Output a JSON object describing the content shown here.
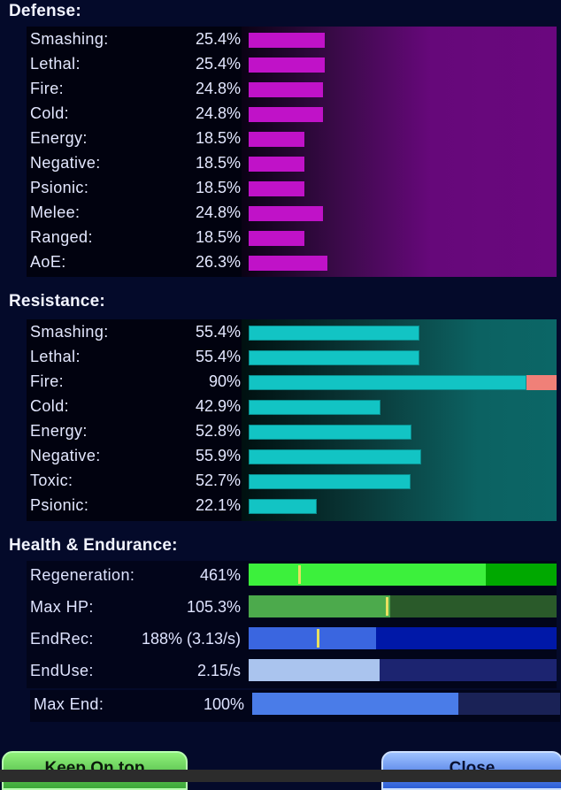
{
  "defense": {
    "title": "Defense:",
    "rows": [
      {
        "label": "Smashing:",
        "value": "25.4%",
        "fraction": 0.254
      },
      {
        "label": "Lethal:",
        "value": "25.4%",
        "fraction": 0.254
      },
      {
        "label": "Fire:",
        "value": "24.8%",
        "fraction": 0.248
      },
      {
        "label": "Cold:",
        "value": "24.8%",
        "fraction": 0.248
      },
      {
        "label": "Energy:",
        "value": "18.5%",
        "fraction": 0.185
      },
      {
        "label": "Negative:",
        "value": "18.5%",
        "fraction": 0.185
      },
      {
        "label": "Psionic:",
        "value": "18.5%",
        "fraction": 0.185
      },
      {
        "label": "Melee:",
        "value": "24.8%",
        "fraction": 0.248
      },
      {
        "label": "Ranged:",
        "value": "18.5%",
        "fraction": 0.185
      },
      {
        "label": "AoE:",
        "value": "26.3%",
        "fraction": 0.263
      }
    ]
  },
  "resistance": {
    "title": "Resistance:",
    "rows": [
      {
        "label": "Smashing:",
        "value": "55.4%",
        "fraction": 0.554
      },
      {
        "label": "Lethal:",
        "value": "55.4%",
        "fraction": 0.554
      },
      {
        "label": "Fire:",
        "value": "90%",
        "fraction": 0.9,
        "over_cap": true
      },
      {
        "label": "Cold:",
        "value": "42.9%",
        "fraction": 0.429
      },
      {
        "label": "Energy:",
        "value": "52.8%",
        "fraction": 0.528
      },
      {
        "label": "Negative:",
        "value": "55.9%",
        "fraction": 0.559
      },
      {
        "label": "Toxic:",
        "value": "52.7%",
        "fraction": 0.527
      },
      {
        "label": "Psionic:",
        "value": "22.1%",
        "fraction": 0.221
      }
    ]
  },
  "health_endurance": {
    "title": "Health & Endurance:",
    "rows": [
      {
        "label": "Regeneration:",
        "value": "461%",
        "fill_fraction": 0.77,
        "marker_fraction": 0.16,
        "track_color": "#00a800",
        "fill_color": "#3cf03c"
      },
      {
        "label": "Max HP:",
        "value": "105.3%",
        "fill_fraction": 0.46,
        "marker_fraction": 0.445,
        "track_color": "#2a5a2a",
        "fill_color": "#4caa4c"
      },
      {
        "label": "EndRec:",
        "value": "188% (3.13/s)",
        "fill_fraction": 0.415,
        "marker_fraction": 0.22,
        "track_color": "#0018a8",
        "fill_color": "#3a66e0"
      },
      {
        "label": "EndUse:",
        "value": "2.15/s",
        "fill_fraction": 0.425,
        "marker_fraction": null,
        "track_color": "#1c2470",
        "fill_color": "#aac4ee"
      },
      {
        "label": "Max End:",
        "value": "100%",
        "fill_fraction": 0.67,
        "marker_fraction": null,
        "track_color": "#1a2256",
        "fill_color": "#4a7ce8"
      }
    ]
  },
  "buttons": {
    "keep_on_top": "Keep On top",
    "close": "Close"
  }
}
